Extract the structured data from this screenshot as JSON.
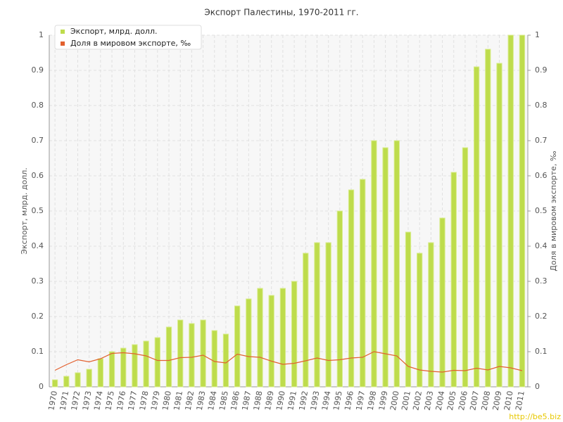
{
  "chart_data": {
    "type": "bar-line",
    "title": "Экспорт Палестины, 1970-2011 гг.",
    "y_label": "Экспорт, млрд. долл.",
    "y2_label": "Доля в мировом экспорте, ‰",
    "watermark": "http://be5.biz",
    "categories": [
      "1970",
      "1971",
      "1972",
      "1973",
      "1974",
      "1975",
      "1976",
      "1977",
      "1978",
      "1979",
      "1980",
      "1981",
      "1982",
      "1983",
      "1984",
      "1985",
      "1986",
      "1987",
      "1988",
      "1989",
      "1990",
      "1991",
      "1992",
      "1993",
      "1994",
      "1995",
      "1996",
      "1997",
      "1998",
      "1999",
      "2000",
      "2001",
      "2002",
      "2003",
      "2004",
      "2005",
      "2006",
      "2007",
      "2008",
      "2009",
      "2010",
      "2011"
    ],
    "series": [
      {
        "name": "Экспорт, млрд. долл.",
        "type": "bar",
        "color": "#bedc4c",
        "values": [
          0.02,
          0.03,
          0.04,
          0.05,
          0.08,
          0.1,
          0.11,
          0.12,
          0.13,
          0.14,
          0.17,
          0.19,
          0.18,
          0.19,
          0.16,
          0.15,
          0.23,
          0.25,
          0.28,
          0.26,
          0.28,
          0.3,
          0.38,
          0.41,
          0.41,
          0.5,
          0.56,
          0.59,
          0.7,
          0.68,
          0.7,
          0.44,
          0.38,
          0.41,
          0.48,
          0.61,
          0.68,
          0.91,
          0.96,
          0.92,
          1.0,
          1.0
        ]
      },
      {
        "name": "Доля в мировом экспорте, ‰",
        "type": "line",
        "axis": "y2",
        "color": "#e2602e",
        "values": [
          0.047,
          0.063,
          0.077,
          0.071,
          0.08,
          0.095,
          0.097,
          0.094,
          0.088,
          0.075,
          0.075,
          0.083,
          0.084,
          0.09,
          0.072,
          0.068,
          0.093,
          0.086,
          0.084,
          0.073,
          0.064,
          0.067,
          0.074,
          0.082,
          0.075,
          0.077,
          0.082,
          0.084,
          0.1,
          0.094,
          0.088,
          0.058,
          0.048,
          0.044,
          0.042,
          0.047,
          0.046,
          0.053,
          0.048,
          0.058,
          0.054,
          0.046
        ]
      }
    ],
    "ylim": [
      0,
      1
    ],
    "yticks": [
      0,
      0.1,
      0.2,
      0.3,
      0.4,
      0.5,
      0.6,
      0.7,
      0.8,
      0.9,
      1
    ],
    "y2lim": [
      0,
      1
    ],
    "y2ticks": [
      0,
      0.1,
      0.2,
      0.3,
      0.4,
      0.5,
      0.6,
      0.7,
      0.8,
      0.9,
      1
    ],
    "grid": true,
    "legend": "top-left"
  }
}
